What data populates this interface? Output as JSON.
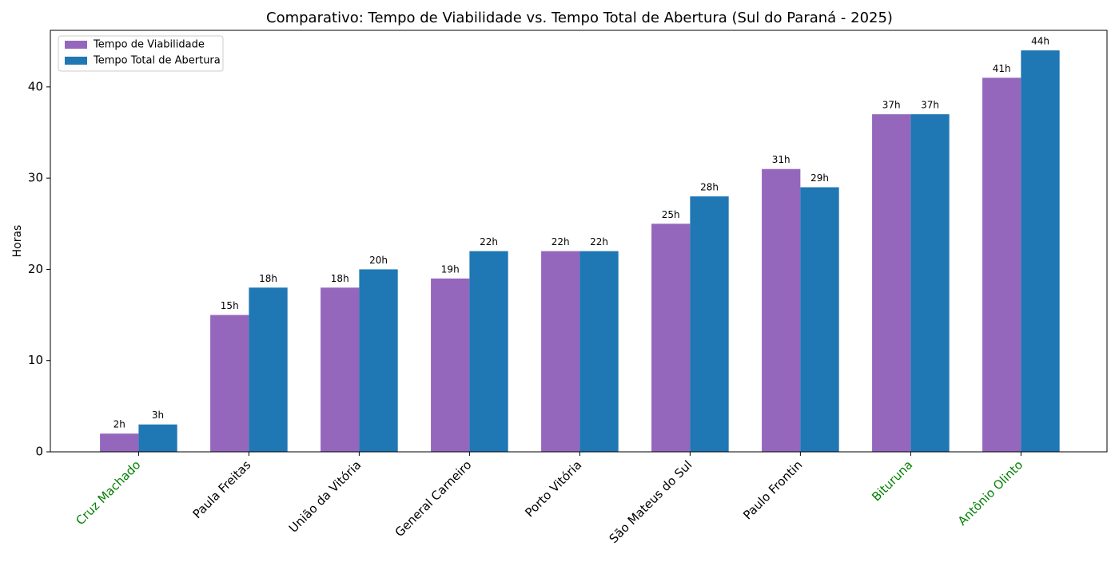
{
  "chart_data": {
    "type": "bar",
    "title": "Comparativo: Tempo de Viabilidade vs. Tempo Total de Abertura (Sul do Paraná - 2025)",
    "y_label": "Horas",
    "categories": [
      "Cruz Machado",
      "Paula Freitas",
      "União da Vitória",
      "General Carneiro",
      "Porto Vitória",
      "São Mateus do Sul",
      "Paulo Frontin",
      "Bituruna",
      "Antônio Olinto"
    ],
    "category_colors": [
      "#008000",
      "#000000",
      "#000000",
      "#000000",
      "#000000",
      "#000000",
      "#000000",
      "#008000",
      "#008000"
    ],
    "series": [
      {
        "name": "Tempo de Viabilidade",
        "color": "#9467bd",
        "values": [
          2,
          15,
          18,
          19,
          22,
          25,
          31,
          37,
          41
        ],
        "value_labels": [
          "2h",
          "15h",
          "18h",
          "19h",
          "22h",
          "25h",
          "31h",
          "37h",
          "41h"
        ]
      },
      {
        "name": "Tempo Total de Abertura",
        "color": "#1f77b4",
        "values": [
          3,
          18,
          20,
          22,
          22,
          28,
          29,
          37,
          44
        ],
        "value_labels": [
          "3h",
          "18h",
          "20h",
          "22h",
          "22h",
          "28h",
          "29h",
          "37h",
          "44h"
        ]
      }
    ],
    "ylim": [
      0,
      46.2
    ],
    "yticks": [
      0,
      10,
      20,
      30,
      40
    ],
    "legend": "upper left"
  }
}
